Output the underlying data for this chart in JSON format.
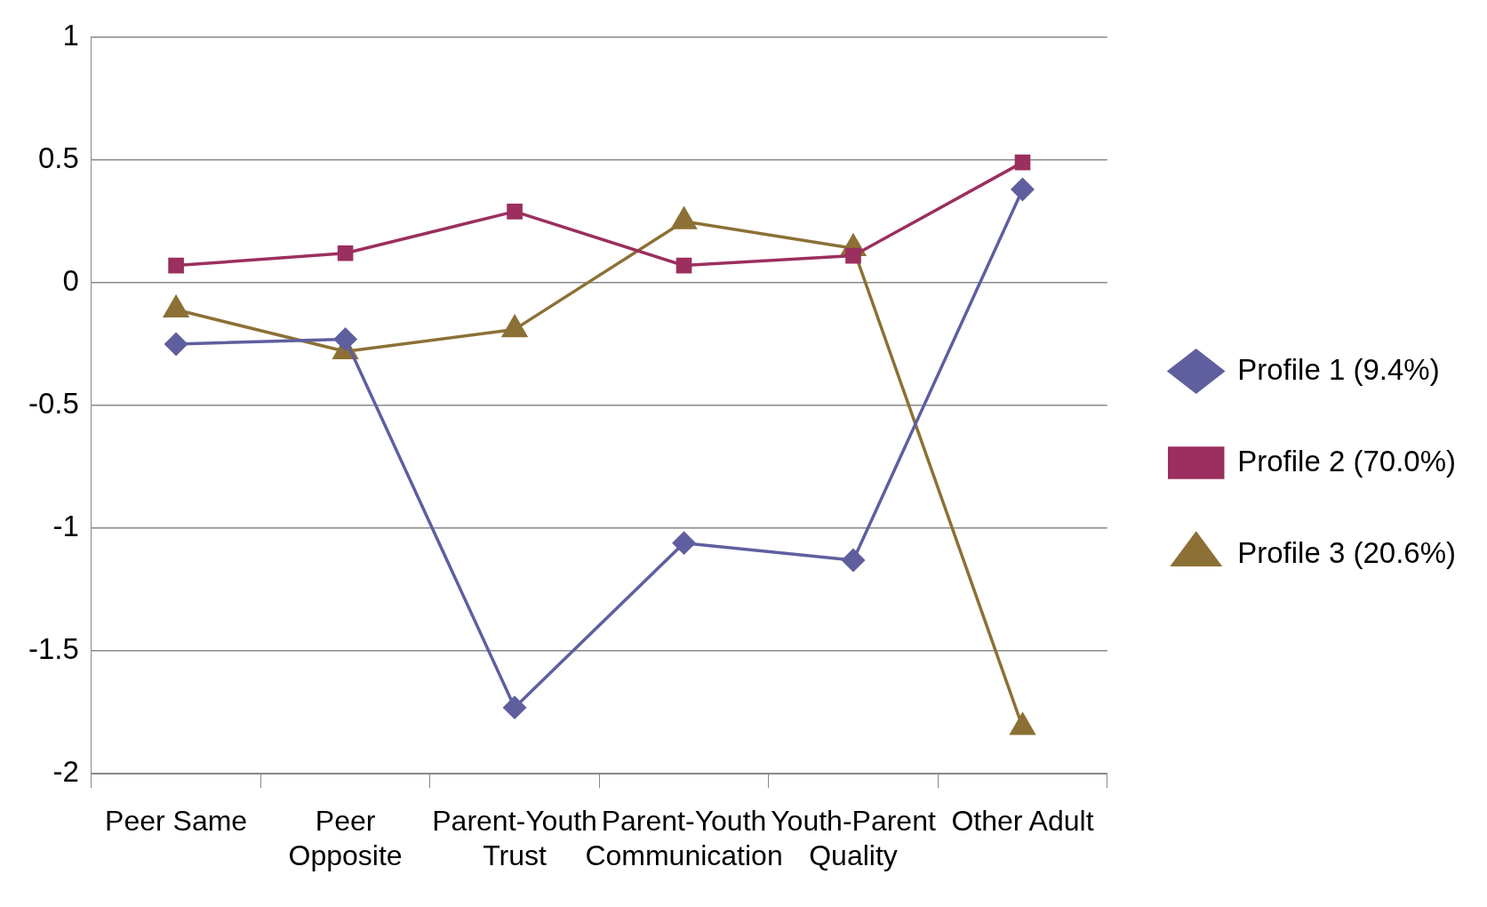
{
  "chart_data": {
    "type": "line",
    "categories": [
      "Peer Same",
      "Peer Opposite",
      "Parent-Youth Trust",
      "Parent-Youth Communication",
      "Youth-Parent Quality",
      "Other Adult"
    ],
    "series": [
      {
        "name": "Profile 1 (9.4%)",
        "color": "#5f5f9f",
        "marker": "diamond",
        "values": [
          -0.25,
          -0.23,
          -1.73,
          -1.06,
          -1.13,
          0.38
        ]
      },
      {
        "name": "Profile 2 (70.0%)",
        "color": "#9b2f5f",
        "marker": "square",
        "values": [
          0.07,
          0.12,
          0.29,
          0.07,
          0.11,
          0.49
        ]
      },
      {
        "name": "Profile 3 (20.6%)",
        "color": "#8c7035",
        "marker": "triangle",
        "values": [
          -0.11,
          -0.28,
          -0.19,
          0.25,
          0.14,
          -1.81
        ]
      }
    ],
    "ylim": [
      -2,
      1
    ],
    "yticks": [
      -2,
      -1.5,
      -1,
      -0.5,
      0,
      0.5,
      1
    ],
    "grid": "y",
    "legend": "right",
    "line_style": "solid"
  }
}
